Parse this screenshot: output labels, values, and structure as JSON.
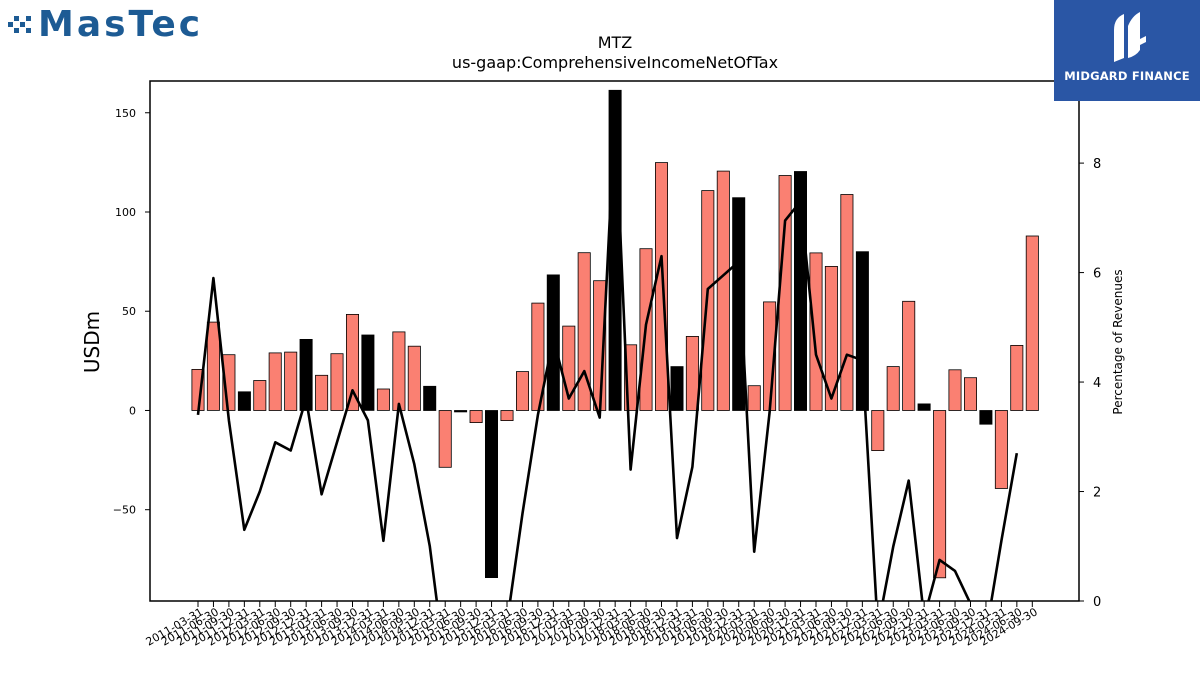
{
  "brand_left": "MasTec",
  "brand_right": "MIDGARD FINANCE",
  "colors": {
    "positive": "#fa8072",
    "highlight": "#000000",
    "line": "#000000",
    "logo_blue": "#1d5b94",
    "panel_blue": "#2a56a5"
  },
  "chart_data": {
    "type": "bar",
    "title": "MTZ",
    "subtitle": "us-gaap:ComprehensiveIncomeNetOfTax",
    "ylabel": "USDm",
    "y2label": "Percentage of Revenues",
    "ylim": [
      -96,
      166
    ],
    "y2lim": [
      0,
      9.5
    ],
    "yticks": [
      -50,
      0,
      50,
      100,
      150
    ],
    "y2ticks": [
      0,
      2,
      4,
      6,
      8
    ],
    "categories": [
      "2011-03-31",
      "2011-06-30",
      "2011-09-30",
      "2011-12-31",
      "2012-03-31",
      "2012-06-30",
      "2012-09-30",
      "2012-12-31",
      "2013-03-31",
      "2013-06-30",
      "2013-09-30",
      "2013-12-31",
      "2014-03-31",
      "2014-06-30",
      "2014-09-30",
      "2014-12-31",
      "2015-03-31",
      "2015-06-30",
      "2015-09-30",
      "2015-12-31",
      "2016-03-31",
      "2016-06-30",
      "2016-09-30",
      "2016-12-31",
      "2017-03-31",
      "2017-06-30",
      "2017-09-30",
      "2017-12-31",
      "2018-03-31",
      "2018-06-30",
      "2018-09-30",
      "2018-12-31",
      "2019-03-31",
      "2019-06-30",
      "2019-09-30",
      "2019-12-31",
      "2020-03-31",
      "2020-06-30",
      "2020-09-30",
      "2020-12-31",
      "2021-03-31",
      "2021-06-30",
      "2021-09-30",
      "2021-12-31",
      "2022-03-31",
      "2022-06-30",
      "2022-09-30",
      "2022-12-31",
      "2023-03-31",
      "2023-06-30",
      "2023-09-30",
      "2023-12-31",
      "2024-03-31",
      "2024-06-30",
      "2024-09-30"
    ],
    "series": [
      {
        "name": "",
        "kind": "bar",
        "values": [
          20.7,
          44.5,
          28.1,
          9.4,
          15.1,
          29.0,
          29.4,
          35.8,
          17.7,
          28.6,
          48.4,
          38.0,
          10.8,
          39.6,
          32.4,
          12.2,
          -28.6,
          -0.7,
          -6.1,
          -84.2,
          -5.1,
          19.6,
          54.1,
          68.3,
          42.5,
          79.5,
          65.4,
          161.3,
          33.1,
          81.5,
          124.9,
          22.1,
          37.3,
          110.8,
          120.6,
          107.2,
          12.5,
          54.7,
          118.4,
          120.4,
          79.4,
          72.6,
          108.8,
          80.0,
          -20.2,
          22.1,
          55.0,
          3.3,
          -84.3,
          20.5,
          16.5,
          -6.9,
          -39.3,
          32.8,
          87.9
        ],
        "highlight": [
          false,
          false,
          false,
          true,
          false,
          false,
          false,
          true,
          false,
          false,
          false,
          true,
          false,
          false,
          false,
          true,
          false,
          true,
          false,
          true,
          false,
          false,
          false,
          true,
          false,
          false,
          false,
          true,
          false,
          false,
          false,
          true,
          false,
          false,
          false,
          true,
          false,
          false,
          false,
          true,
          false,
          false,
          false,
          true,
          false,
          false,
          false,
          true,
          false,
          false,
          false,
          true,
          false,
          false,
          false
        ]
      },
      {
        "name": "",
        "kind": "line",
        "axis": "right",
        "values": [
          3.4,
          5.9,
          3.3,
          1.3,
          2.0,
          2.9,
          2.75,
          3.7,
          1.95,
          2.9,
          3.85,
          3.3,
          1.1,
          3.6,
          2.5,
          1.0,
          -1.2,
          -0.8,
          -0.9,
          -1.4,
          -0.4,
          1.6,
          3.4,
          4.8,
          3.7,
          4.2,
          3.35,
          8.9,
          2.4,
          5.05,
          6.3,
          1.15,
          2.45,
          5.7,
          5.95,
          6.2,
          0.9,
          3.45,
          6.95,
          7.3,
          4.5,
          3.7,
          4.5,
          4.4,
          -0.5,
          1.0,
          2.2,
          -0.3,
          0.75,
          0.55,
          -0.05,
          -0.6,
          1.1,
          2.7,
          null
        ]
      }
    ]
  }
}
